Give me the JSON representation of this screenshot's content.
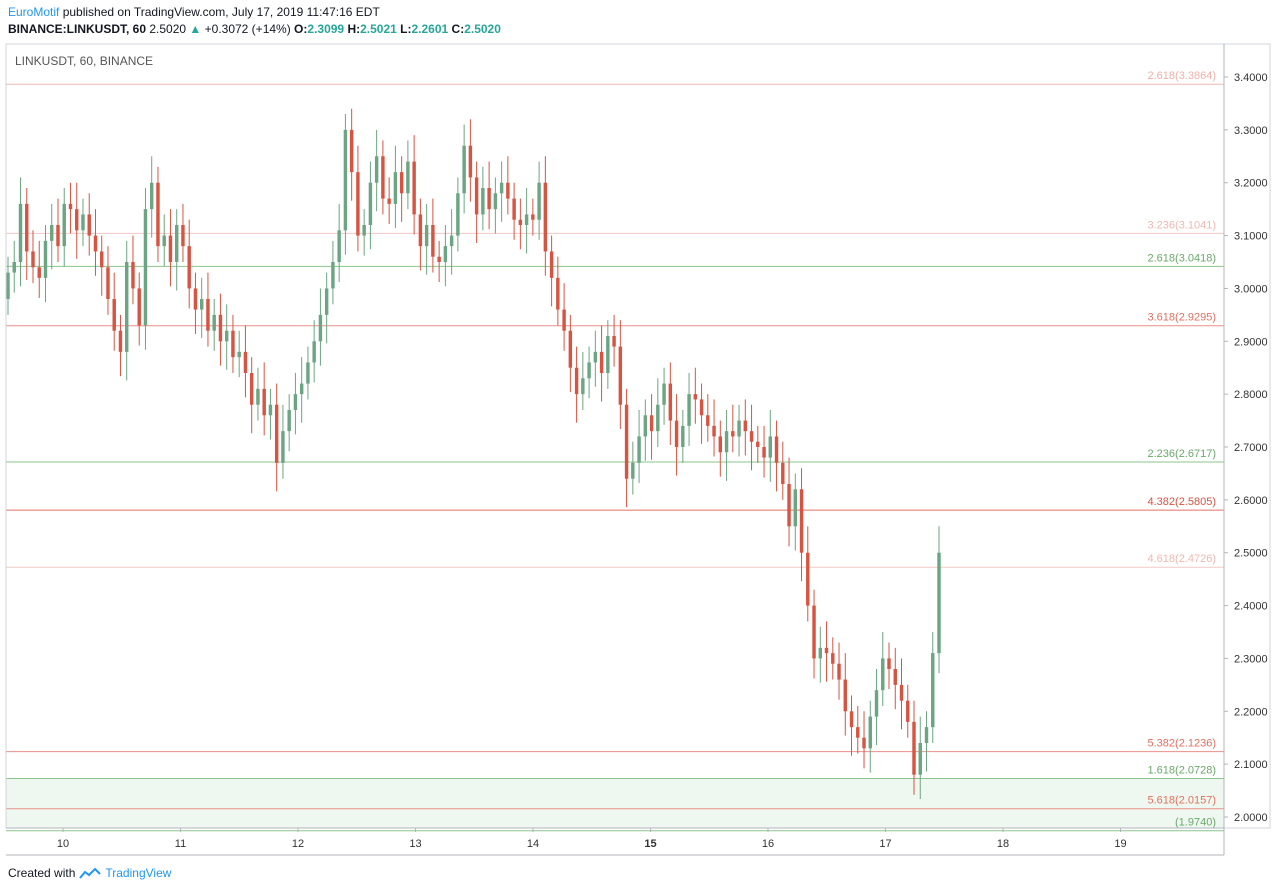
{
  "header": {
    "author": "EuroMotif",
    "published_text": " published on TradingView.com, July 17, 2019 11:47:16 EDT",
    "symbol": "BINANCE:LINKUSDT, 60",
    "last": "2.5020",
    "change": "+0.3072 (+14%)",
    "o_label": "O:",
    "o_value": "2.3099",
    "h_label": "H:",
    "h_value": "2.5021",
    "l_label": "L:",
    "l_value": "2.2601",
    "c_label": "C:",
    "c_value": "2.5020"
  },
  "footer": {
    "created_with": "Created with",
    "brand": "TradingView"
  },
  "colors": {
    "up": "#6ba583",
    "down": "#d75442",
    "grid": "#f0f3fa",
    "axis": "#787b86",
    "zone": "#e8f5e9"
  },
  "chart_data": {
    "type": "candlestick",
    "title": "LINKUSDT, 60, BINANCE",
    "ylim": [
      1.974,
      3.45
    ],
    "y_ticks": [
      "3.4000",
      "3.3000",
      "3.2000",
      "3.1000",
      "3.0000",
      "2.9000",
      "2.8000",
      "2.7000",
      "2.6000",
      "2.5000",
      "2.4000",
      "2.3000",
      "2.2000",
      "2.1000",
      "2.0000"
    ],
    "x_labels": [
      "10",
      "11",
      "12",
      "13",
      "14",
      "15",
      "16",
      "17",
      "18",
      "19"
    ],
    "x_label_bold": "15",
    "fib_levels": [
      {
        "label": "2.618(3.3864)",
        "value": 3.3864,
        "color": "#f0b8b0",
        "text_color": "#f0b0a8"
      },
      {
        "label": "3.236(3.1041)",
        "value": 3.1041,
        "color": "#f0c8c4",
        "text_color": "#f0b8b0"
      },
      {
        "label": "2.618(3.0418)",
        "value": 3.0418,
        "color": "#8bc48a",
        "text_color": "#6aa86a"
      },
      {
        "label": "3.618(2.9295)",
        "value": 2.9295,
        "color": "#e89088",
        "text_color": "#e07060"
      },
      {
        "label": "2.236(2.6717)",
        "value": 2.6717,
        "color": "#8bc48a",
        "text_color": "#6aa86a"
      },
      {
        "label": "4.382(2.5805)",
        "value": 2.5805,
        "color": "#e07060",
        "text_color": "#d75442"
      },
      {
        "label": "4.618(2.4726)",
        "value": 2.4726,
        "color": "#f0c8c4",
        "text_color": "#f0b8b0"
      },
      {
        "label": "5.382(2.1236)",
        "value": 2.1236,
        "color": "#e89088",
        "text_color": "#e07060"
      },
      {
        "label": "1.618(2.0728)",
        "value": 2.0728,
        "color": "#8bc48a",
        "text_color": "#6aa86a"
      },
      {
        "label": "5.618(2.0157)",
        "value": 2.0157,
        "color": "#e89088",
        "text_color": "#e07060"
      },
      {
        "label": "(1.9740)",
        "value": 1.974,
        "color": "#8bc48a",
        "text_color": "#6aa86a"
      }
    ],
    "zone": [
      1.974,
      2.0728
    ],
    "series_close": [
      3.03,
      3.05,
      3.16,
      3.07,
      3.04,
      3.02,
      3.09,
      3.12,
      3.08,
      3.16,
      3.15,
      3.11,
      3.14,
      3.1,
      3.07,
      3.04,
      2.98,
      2.92,
      2.88,
      3.05,
      3.0,
      2.93,
      3.15,
      3.2,
      3.08,
      3.1,
      3.05,
      3.12,
      3.08,
      3.0,
      2.96,
      2.98,
      2.92,
      2.95,
      2.9,
      2.92,
      2.87,
      2.88,
      2.84,
      2.78,
      2.81,
      2.76,
      2.78,
      2.67,
      2.73,
      2.77,
      2.8,
      2.82,
      2.86,
      2.9,
      2.95,
      3.0,
      3.05,
      3.11,
      3.3,
      3.22,
      3.1,
      3.12,
      3.2,
      3.25,
      3.17,
      3.16,
      3.22,
      3.18,
      3.24,
      3.14,
      3.08,
      3.12,
      3.06,
      3.05,
      3.08,
      3.1,
      3.18,
      3.27,
      3.21,
      3.14,
      3.19,
      3.15,
      3.18,
      3.2,
      3.17,
      3.13,
      3.12,
      3.14,
      3.13,
      3.2,
      3.07,
      3.02,
      2.96,
      2.92,
      2.85,
      2.8,
      2.83,
      2.86,
      2.88,
      2.84,
      2.91,
      2.89,
      2.78,
      2.64,
      2.67,
      2.72,
      2.76,
      2.73,
      2.78,
      2.82,
      2.75,
      2.7,
      2.74,
      2.8,
      2.79,
      2.76,
      2.74,
      2.72,
      2.69,
      2.73,
      2.72,
      2.75,
      2.73,
      2.71,
      2.7,
      2.68,
      2.72,
      2.67,
      2.63,
      2.55,
      2.62,
      2.5,
      2.4,
      2.3,
      2.32,
      2.31,
      2.29,
      2.26,
      2.2,
      2.17,
      2.15,
      2.13,
      2.19,
      2.24,
      2.3,
      2.28,
      2.25,
      2.22,
      2.18,
      2.08,
      2.14,
      2.17,
      2.31,
      2.5
    ],
    "series_open": [
      2.98,
      3.03,
      3.05,
      3.16,
      3.07,
      3.04,
      3.02,
      3.09,
      3.12,
      3.08,
      3.16,
      3.15,
      3.11,
      3.14,
      3.1,
      3.07,
      3.04,
      2.98,
      2.92,
      2.88,
      3.05,
      3.0,
      2.93,
      3.15,
      3.2,
      3.08,
      3.1,
      3.05,
      3.12,
      3.08,
      3.0,
      2.96,
      2.98,
      2.92,
      2.95,
      2.9,
      2.92,
      2.87,
      2.88,
      2.84,
      2.78,
      2.81,
      2.76,
      2.78,
      2.67,
      2.73,
      2.77,
      2.8,
      2.82,
      2.86,
      2.9,
      2.95,
      3.0,
      3.05,
      3.11,
      3.3,
      3.22,
      3.1,
      3.12,
      3.2,
      3.25,
      3.17,
      3.16,
      3.22,
      3.18,
      3.24,
      3.14,
      3.08,
      3.12,
      3.06,
      3.05,
      3.08,
      3.1,
      3.18,
      3.27,
      3.21,
      3.14,
      3.19,
      3.15,
      3.18,
      3.2,
      3.17,
      3.13,
      3.12,
      3.14,
      3.13,
      3.2,
      3.07,
      3.02,
      2.96,
      2.92,
      2.85,
      2.8,
      2.83,
      2.86,
      2.88,
      2.84,
      2.91,
      2.89,
      2.78,
      2.64,
      2.67,
      2.72,
      2.76,
      2.73,
      2.78,
      2.82,
      2.75,
      2.7,
      2.74,
      2.8,
      2.79,
      2.76,
      2.74,
      2.72,
      2.69,
      2.73,
      2.72,
      2.75,
      2.73,
      2.71,
      2.7,
      2.68,
      2.72,
      2.67,
      2.63,
      2.55,
      2.62,
      2.5,
      2.4,
      2.3,
      2.32,
      2.31,
      2.29,
      2.26,
      2.2,
      2.17,
      2.15,
      2.13,
      2.19,
      2.24,
      2.3,
      2.28,
      2.25,
      2.22,
      2.18,
      2.08,
      2.14,
      2.17,
      2.31
    ]
  }
}
